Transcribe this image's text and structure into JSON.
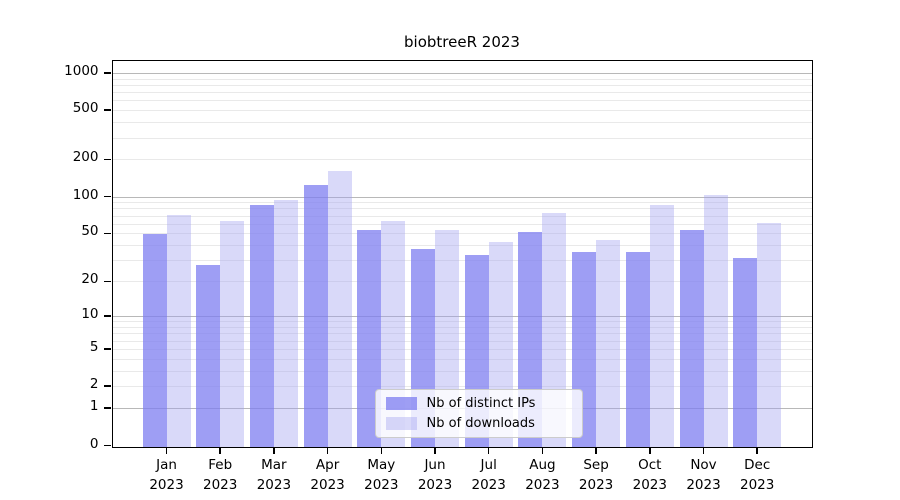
{
  "chart_data": {
    "type": "bar",
    "title": "biobtreeR 2023",
    "categories": [
      "Jan",
      "Feb",
      "Mar",
      "Apr",
      "May",
      "Jun",
      "Jul",
      "Aug",
      "Sep",
      "Oct",
      "Nov",
      "Dec"
    ],
    "x_year_label": "2023",
    "series": [
      {
        "name": "Nb of distinct IPs",
        "color": "#7d7df0",
        "alpha": 0.75,
        "values": [
          50,
          28,
          87,
          126,
          54,
          38,
          34,
          52,
          36,
          36,
          54,
          32
        ]
      },
      {
        "name": "Nb of downloads",
        "color": "#a0a0f0",
        "alpha": 0.4,
        "values": [
          72,
          65,
          96,
          165,
          65,
          54,
          43,
          75,
          45,
          87,
          104,
          62
        ]
      }
    ],
    "y_axis": {
      "scale": "log1p",
      "tick_values": [
        1000,
        500,
        200,
        100,
        50,
        20,
        10,
        5,
        2,
        1,
        0
      ],
      "max_log10": 3.1
    },
    "grid": {
      "major_color": "#b8b8b8",
      "minor_color": "#e9e9e9"
    },
    "legend": {
      "position": "lower-center"
    }
  }
}
